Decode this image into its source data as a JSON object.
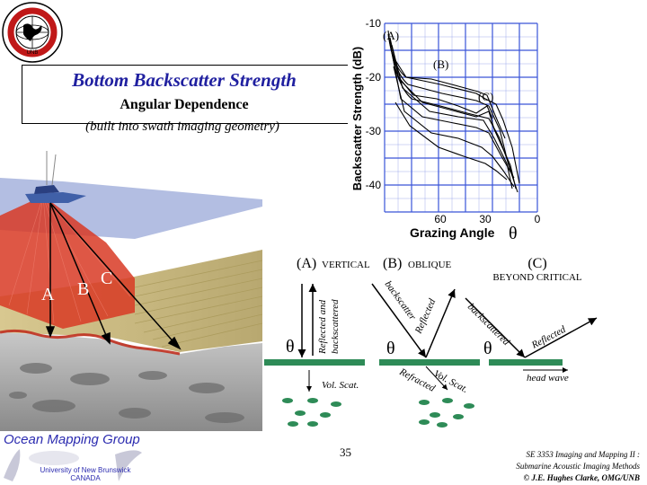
{
  "logo": {
    "icon": "society-seal-icon",
    "ring_text": "HYDROGRAPHIC AND GEOMATICS ENGINEERING",
    "bottom_text": "UNB"
  },
  "title": {
    "main": "Bottom Backscatter Strength",
    "sub": "Angular Dependence",
    "note": "(built into swath imaging geometry)"
  },
  "scene": {
    "beam_labels": [
      "A",
      "B",
      "C"
    ]
  },
  "graph": {
    "ylabel": "Backscatter Strength (dB)",
    "xlabel": "Grazing Angle",
    "theta": "θ",
    "yticks": [
      "-10",
      "-20",
      "-30",
      "-40"
    ],
    "xticks": [
      "60",
      "30",
      "0"
    ],
    "annotations": [
      "(A)",
      "(B)",
      "(C)"
    ]
  },
  "diagram": {
    "headers": [
      {
        "letter": "(A)",
        "label": "VERTICAL"
      },
      {
        "letter": "(B)",
        "label": "OBLIQUE"
      },
      {
        "letter": "(C)",
        "label": "BEYOND CRITICAL"
      }
    ],
    "a": {
      "arrow_text_1": "Reflected and",
      "arrow_text_2": "backscattered",
      "theta": "θ",
      "vol_scat": "Vol. Scat."
    },
    "b": {
      "backscatter": "backscatter",
      "reflected": "Reflected",
      "theta": "θ",
      "refracted": "Refracted",
      "vol_scat": "Vol. Scat."
    },
    "c": {
      "backscattered": "backscattered",
      "reflected": "Reflected",
      "theta": "θ",
      "head_wave": "head wave"
    }
  },
  "footer": {
    "group": "Ocean Mapping Group",
    "university": "University of New Brunswick",
    "city": "CANADA",
    "page": "35",
    "course1": "SE 3353 Imaging and Mapping II :",
    "course2": "Submarine Acoustic Imaging Methods",
    "credit": "© J.E. Hughes Clarke, OMG/UNB"
  },
  "colors": {
    "title": "#2020a0",
    "footer": "#2c2cb0",
    "seafloor": "#2e8b57",
    "grid": "#3a55d8"
  }
}
